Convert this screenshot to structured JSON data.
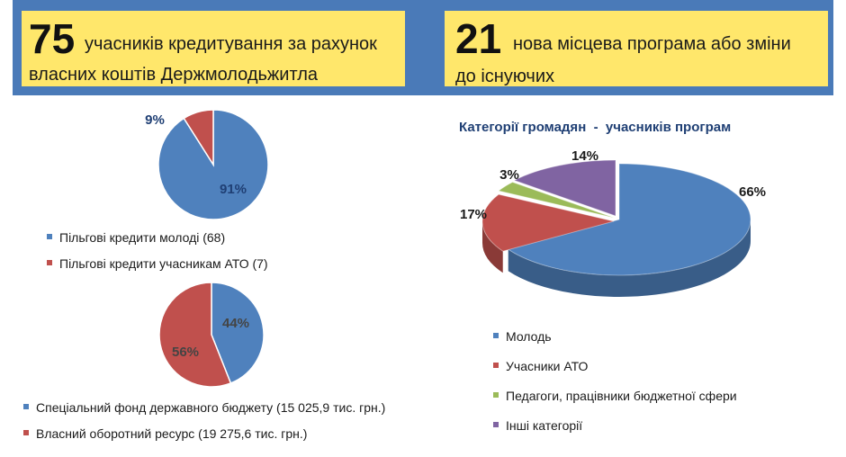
{
  "header": {
    "left_box": {
      "number": "75",
      "line1": "учасників кредитування за рахунок",
      "line2": "власних коштів Держмолодьжитла"
    },
    "right_box": {
      "number": "21",
      "line1": "нова місцева програма або зміни",
      "line2": "до існуючих"
    }
  },
  "colors": {
    "blue": "#4f81bd",
    "red": "#c0504d",
    "green": "#9bbb59",
    "purple": "#8064a2",
    "band": "#4a7ab8",
    "box": "#ffe76b"
  },
  "chart_data": [
    {
      "type": "pie",
      "categories": [
        "Пільгові кредити молоді (68)",
        "Пільгові кредити учасникам АТО (7)"
      ],
      "values": [
        91,
        9
      ],
      "data_labels": [
        "91%",
        "9%"
      ],
      "colors": [
        "#4f81bd",
        "#c0504d"
      ],
      "legend": "bottom"
    },
    {
      "type": "pie",
      "categories": [
        "Спеціальний фонд державного бюджету (15 025,9 тис. грн.)",
        "Власний оборотний ресурс (19 275,6 тис. грн.)"
      ],
      "values": [
        44,
        56
      ],
      "data_labels": [
        "44%",
        "56%"
      ],
      "colors": [
        "#4f81bd",
        "#c0504d"
      ],
      "legend": "bottom"
    },
    {
      "type": "pie",
      "title": "Категорії громадян  -  учасників програм",
      "categories": [
        "Молодь",
        "Учасники АТО",
        "Педагоги, працівники бюджетної сфери",
        "Інші категорії"
      ],
      "values": [
        66,
        17,
        3,
        14
      ],
      "data_labels": [
        "66%",
        "17%",
        "3%",
        "14%"
      ],
      "colors": [
        "#4f81bd",
        "#c0504d",
        "#9bbb59",
        "#8064a2"
      ],
      "legend": "bottom"
    }
  ]
}
